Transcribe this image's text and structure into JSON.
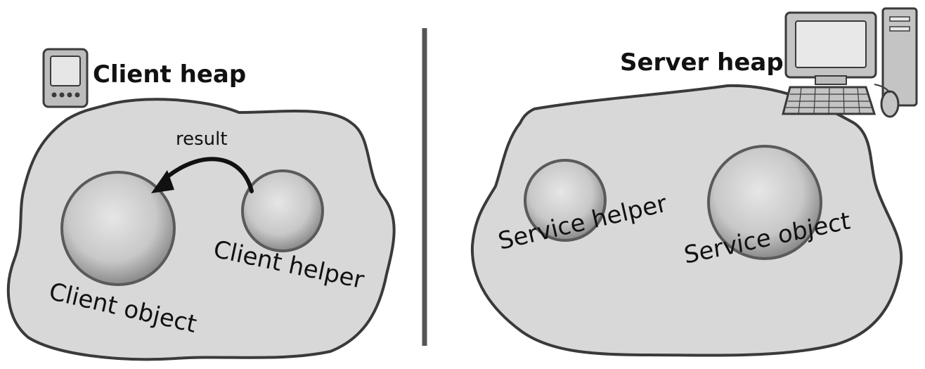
{
  "client": {
    "heading": "Client heap",
    "object_label": "Client object",
    "helper_label": "Client helper",
    "arrow_label": "result",
    "device_icon": "pda-icon"
  },
  "server": {
    "heading": "Server heap",
    "helper_label": "Service helper",
    "object_label": "Service object",
    "device_icon": "desktop-computer-icon"
  },
  "colors": {
    "heap_fill": "#d8d8d8",
    "heap_stroke": "#3a3a3a",
    "sphere_fill": "#c9c9c9",
    "divider": "#555555",
    "arrow": "#111111"
  }
}
